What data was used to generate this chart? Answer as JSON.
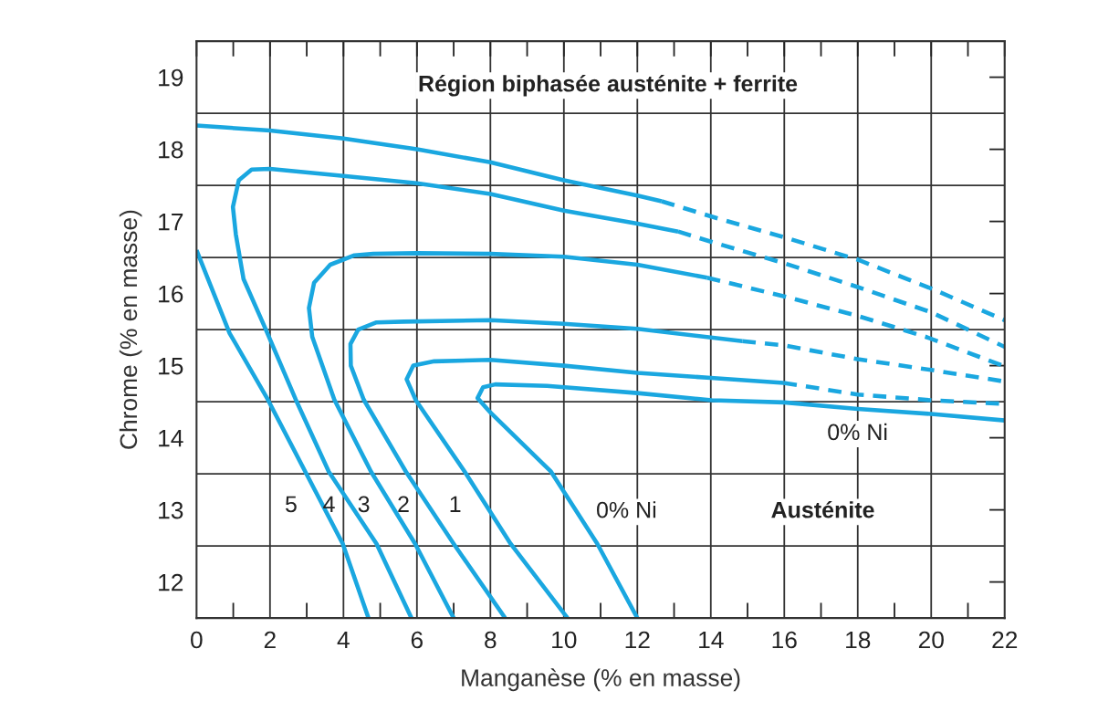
{
  "chart_data": {
    "type": "line",
    "xlabel": "Manganèse (% en masse)",
    "ylabel": "Chrome (% en masse)",
    "xlim": [
      0,
      22
    ],
    "ylim": [
      11.5,
      19.5
    ],
    "xticks": [
      0,
      2,
      4,
      6,
      8,
      10,
      12,
      14,
      16,
      18,
      20,
      22
    ],
    "yticks": [
      12,
      13,
      14,
      15,
      16,
      17,
      18,
      19
    ],
    "grid": false,
    "series": [
      {
        "color": "#1aa7e0",
        "line_style": "solid",
        "x": [
          0,
          0.9,
          1.94,
          2.96,
          3.98,
          4.68
        ],
        "values": [
          16.6,
          15.45,
          14.53,
          13.53,
          12.53,
          11.5
        ]
      },
      {
        "color": "#1aa7e0",
        "line_style": "solid",
        "x": [
          0,
          2,
          4,
          6,
          8,
          10,
          12,
          12.66
        ],
        "values": [
          18.33,
          18.26,
          18.15,
          18.0,
          17.82,
          17.57,
          17.36,
          17.28
        ]
      },
      {
        "color": "#1aa7e0",
        "line_style": "dashed",
        "x": [
          12.66,
          14,
          16,
          18,
          20,
          22
        ],
        "values": [
          17.28,
          17.07,
          16.78,
          16.47,
          16.07,
          15.63
        ]
      },
      {
        "color": "#1aa7e0",
        "line_style": "solid",
        "x": [
          5.85,
          4.9,
          3.6,
          2.7,
          1.86,
          1.28,
          1.07,
          0.99,
          1.15,
          1.5,
          2,
          4,
          6,
          8,
          10,
          12,
          13.11
        ],
        "values": [
          11.5,
          12.53,
          13.53,
          14.53,
          15.53,
          16.2,
          16.82,
          17.2,
          17.57,
          17.72,
          17.73,
          17.63,
          17.53,
          17.38,
          17.15,
          16.97,
          16.86
        ]
      },
      {
        "color": "#1aa7e0",
        "line_style": "dashed",
        "x": [
          13.11,
          14,
          16,
          18,
          20,
          22
        ],
        "values": [
          16.86,
          16.72,
          16.42,
          16.09,
          15.74,
          15.26
        ]
      },
      {
        "color": "#1aa7e0",
        "line_style": "solid",
        "x": [
          7.0,
          5.95,
          4.75,
          3.75,
          3.15,
          3.06,
          3.2,
          3.64,
          4.3,
          4.81,
          6,
          8,
          10,
          12,
          13.9
        ],
        "values": [
          11.5,
          12.53,
          13.53,
          14.53,
          15.4,
          15.8,
          16.15,
          16.4,
          16.53,
          16.55,
          16.56,
          16.55,
          16.51,
          16.4,
          16.22
        ]
      },
      {
        "color": "#1aa7e0",
        "line_style": "dashed",
        "x": [
          13.9,
          16,
          18,
          19.85,
          22
        ],
        "values": [
          16.22,
          15.96,
          15.69,
          15.4,
          14.99
        ]
      },
      {
        "color": "#1aa7e0",
        "line_style": "solid",
        "x": [
          8.4,
          7.0,
          5.7,
          4.55,
          4.2,
          4.19,
          4.4,
          4.9,
          5.64,
          8,
          10,
          12,
          14.86
        ],
        "values": [
          11.5,
          12.53,
          13.53,
          14.53,
          15.0,
          15.3,
          15.5,
          15.6,
          15.61,
          15.63,
          15.58,
          15.51,
          15.34
        ]
      },
      {
        "color": "#1aa7e0",
        "line_style": "dashed",
        "x": [
          14.86,
          16,
          18,
          20,
          22
        ],
        "values": [
          15.34,
          15.28,
          15.09,
          14.94,
          14.78
        ]
      },
      {
        "color": "#1aa7e0",
        "line_style": "solid",
        "x": [
          10.1,
          8.55,
          7.3,
          5.97,
          5.72,
          5.9,
          6.47,
          8,
          10,
          12,
          14,
          15.98
        ],
        "values": [
          11.5,
          12.53,
          13.53,
          14.52,
          14.81,
          15.0,
          15.06,
          15.08,
          15.0,
          14.9,
          14.83,
          14.76
        ]
      },
      {
        "color": "#1aa7e0",
        "line_style": "dashed",
        "x": [
          15.98,
          18,
          20,
          22
        ],
        "values": [
          14.76,
          14.6,
          14.52,
          14.47
        ]
      },
      {
        "color": "#1aa7e0",
        "line_style": "solid",
        "x": [
          12.0,
          10.91,
          9.65,
          8.0,
          7.65,
          7.8,
          8.13,
          9.54,
          12,
          14.03,
          16,
          18,
          20,
          22
        ],
        "values": [
          11.5,
          12.53,
          13.53,
          14.35,
          14.55,
          14.7,
          14.74,
          14.72,
          14.62,
          14.52,
          14.49,
          14.4,
          14.33,
          14.24
        ]
      }
    ],
    "ref_lines": [
      {
        "axis": "x",
        "value": 2,
        "color": "#333333"
      },
      {
        "axis": "x",
        "value": 4,
        "color": "#333333"
      },
      {
        "axis": "x",
        "value": 6,
        "color": "#333333"
      },
      {
        "axis": "x",
        "value": 8,
        "color": "#333333"
      },
      {
        "axis": "x",
        "value": 10,
        "color": "#333333"
      },
      {
        "axis": "x",
        "value": 12,
        "color": "#333333"
      },
      {
        "axis": "x",
        "value": 14,
        "color": "#333333"
      },
      {
        "axis": "x",
        "value": 16,
        "color": "#333333"
      },
      {
        "axis": "x",
        "value": 18,
        "color": "#333333"
      },
      {
        "axis": "x",
        "value": 20,
        "color": "#333333"
      },
      {
        "axis": "y",
        "value": 12.5,
        "color": "#333333"
      },
      {
        "axis": "y",
        "value": 13.5,
        "color": "#333333"
      },
      {
        "axis": "y",
        "value": 14.5,
        "color": "#333333"
      },
      {
        "axis": "y",
        "value": 15.5,
        "color": "#333333"
      },
      {
        "axis": "y",
        "value": 16.5,
        "color": "#333333"
      },
      {
        "axis": "y",
        "value": 17.5,
        "color": "#333333"
      },
      {
        "axis": "y",
        "value": 18.5,
        "color": "#333333"
      }
    ],
    "annotations": [
      "Région biphasée austénite + ferrite",
      "5",
      "4",
      "3",
      "2",
      "1",
      "0% Ni",
      "0% Ni",
      "Austénite"
    ]
  }
}
